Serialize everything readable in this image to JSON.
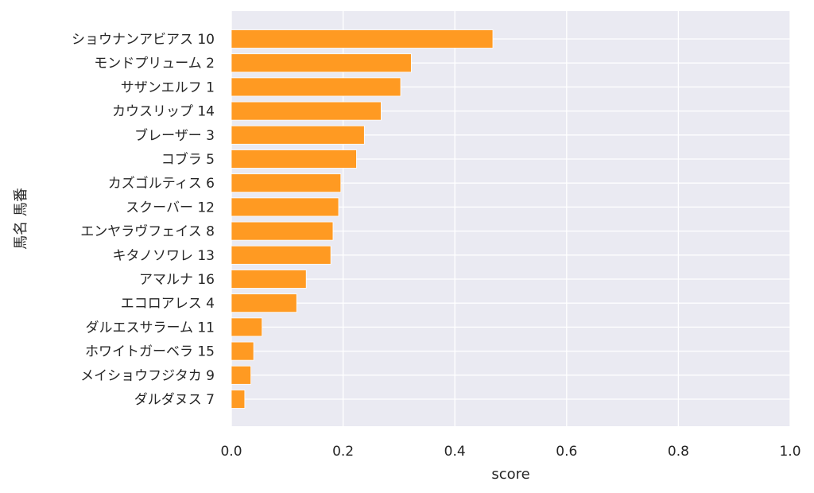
{
  "chart_data": {
    "type": "bar",
    "orientation": "horizontal",
    "categories": [
      "ショウナンアビアス 10",
      "モンドプリューム 2",
      "サザンエルフ 1",
      "カウスリップ 14",
      "ブレーザー 3",
      "コブラ 5",
      "カズゴルティス 6",
      "スクーバー 12",
      "エンヤラヴフェイス 8",
      "キタノソワレ 13",
      "アマルナ 16",
      "エコロアレス 4",
      "ダルエスサラーム 11",
      "ホワイトガーベラ 15",
      "メイショウフジタカ 9",
      "ダルダヌス 7"
    ],
    "values": [
      0.468,
      0.322,
      0.303,
      0.268,
      0.238,
      0.224,
      0.196,
      0.192,
      0.182,
      0.178,
      0.134,
      0.117,
      0.055,
      0.04,
      0.035,
      0.024
    ],
    "xlabel": "score",
    "ylabel": "馬名 馬番",
    "xlim": [
      0,
      1
    ],
    "xticks": [
      "0.0",
      "0.2",
      "0.4",
      "0.6",
      "0.8",
      "1.0"
    ],
    "grid": true,
    "bar_color": "#ff9a22",
    "background_color": "#eaeaf2"
  }
}
